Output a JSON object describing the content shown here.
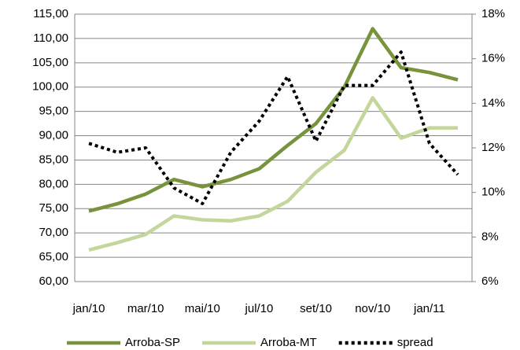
{
  "chart_data": {
    "type": "line",
    "categories": [
      "jan/10",
      null,
      "mar/10",
      null,
      "mai/10",
      null,
      "jul/10",
      null,
      "set/10",
      null,
      "nov/10",
      null,
      "jan/11",
      null
    ],
    "series": [
      {
        "name": "Arroba-SP",
        "color": "#77933c",
        "values": [
          74.5,
          76,
          78,
          81,
          79.5,
          81,
          83.2,
          88,
          92.5,
          100,
          112,
          104,
          103,
          101.5
        ]
      },
      {
        "name": "Arroba-MT",
        "color": "#c3d69b",
        "values": [
          66.5,
          68,
          69.7,
          73.5,
          72.7,
          72.5,
          73.5,
          76.5,
          82.5,
          87,
          97.8,
          89.5,
          91.6,
          91.6
        ]
      },
      {
        "name": "spread",
        "color": "#000000",
        "style": "dotted",
        "axis": "y2",
        "values": [
          12.2,
          11.8,
          12.0,
          10.2,
          9.5,
          11.8,
          13.2,
          15.2,
          12.3,
          14.8,
          14.8,
          16.3,
          12.2,
          10.8
        ]
      }
    ],
    "ylim": [
      60,
      115
    ],
    "yticks": [
      {
        "value": 60,
        "label": "60,00"
      },
      {
        "value": 65,
        "label": "65,00"
      },
      {
        "value": 70,
        "label": "70,00"
      },
      {
        "value": 75,
        "label": "75,00"
      },
      {
        "value": 80,
        "label": "80,00"
      },
      {
        "value": 85,
        "label": "85,00"
      },
      {
        "value": 90,
        "label": "90,00"
      },
      {
        "value": 95,
        "label": "95,00"
      },
      {
        "value": 100,
        "label": "100,00"
      },
      {
        "value": 105,
        "label": "105,00"
      },
      {
        "value": 110,
        "label": "110,00"
      },
      {
        "value": 115,
        "label": "115,00"
      }
    ],
    "y2lim": [
      6,
      18
    ],
    "y2ticks": [
      {
        "value": 6,
        "label": "6%"
      },
      {
        "value": 8,
        "label": "8%"
      },
      {
        "value": 10,
        "label": "10%"
      },
      {
        "value": 12,
        "label": "12%"
      },
      {
        "value": 14,
        "label": "14%"
      },
      {
        "value": 16,
        "label": "16%"
      },
      {
        "value": 18,
        "label": "18%"
      }
    ],
    "grid": true,
    "legend": "bottom"
  }
}
